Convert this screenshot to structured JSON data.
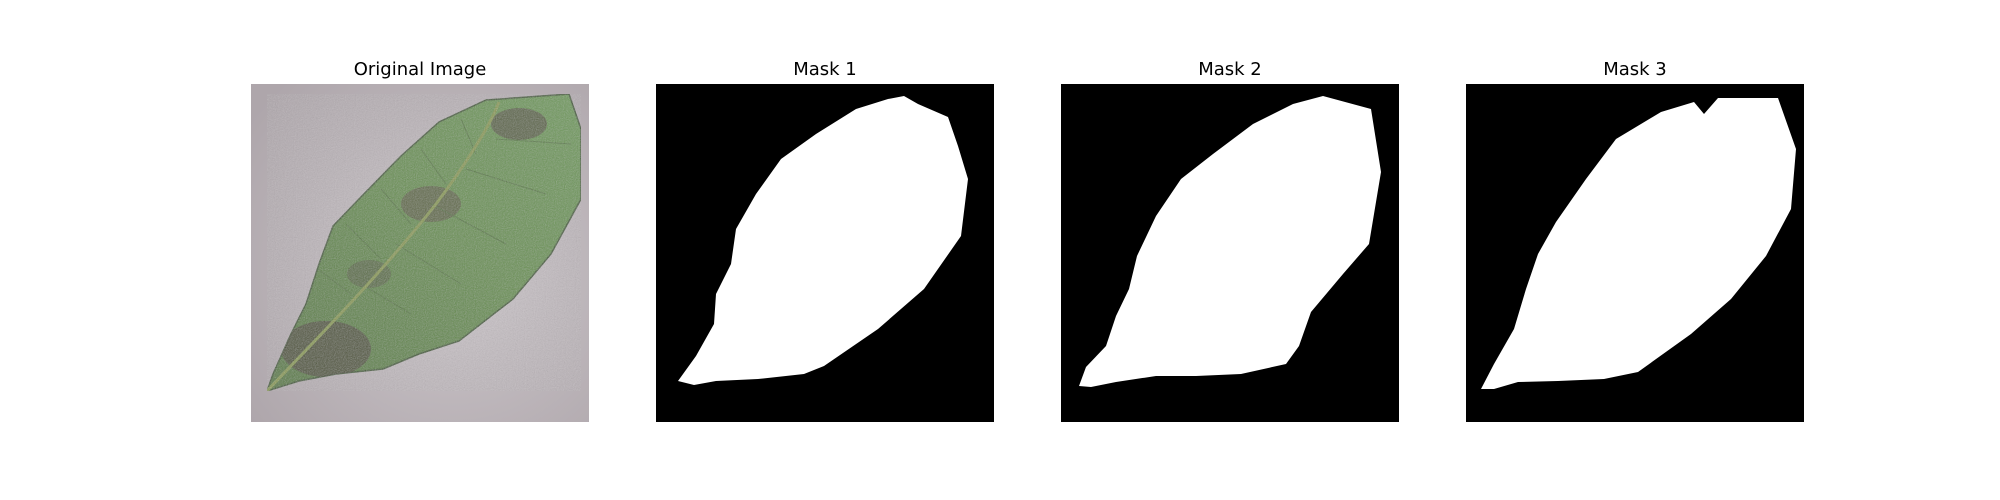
{
  "figure": {
    "panels": [
      {
        "title": "Original Image",
        "kind": "photo",
        "subject": "leaf-photo"
      },
      {
        "title": "Mask 1",
        "kind": "mask",
        "subject": "leaf-mask"
      },
      {
        "title": "Mask 2",
        "kind": "mask",
        "subject": "leaf-mask"
      },
      {
        "title": "Mask 3",
        "kind": "mask",
        "subject": "leaf-mask"
      }
    ],
    "colors": {
      "background": "#c2bcc0",
      "leaf": "#5f8a4a",
      "vein": "#8a9a52",
      "blight": "#4a3a34",
      "mask_bg": "#000000",
      "mask_fg": "#ffffff"
    }
  }
}
